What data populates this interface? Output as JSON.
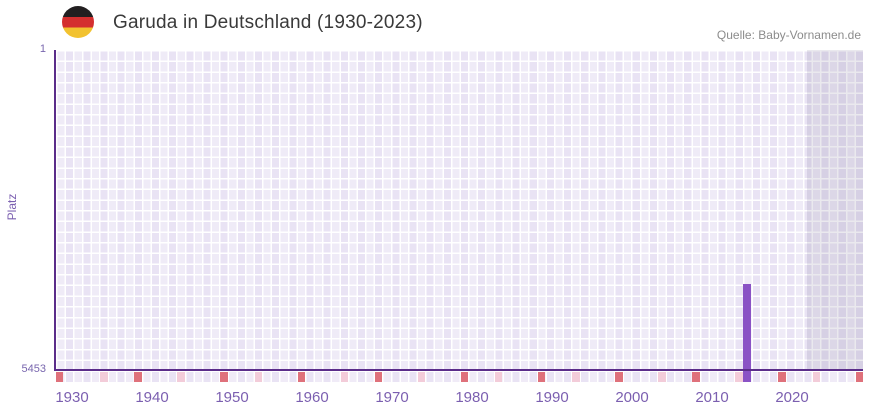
{
  "header": {
    "title": "Garuda in Deutschland (1930-2023)",
    "source": "Quelle: Baby-Vornamen.de"
  },
  "flag": {
    "name": "germany-flag-roundel",
    "colors": {
      "black": "#221f20",
      "red": "#d42f2f",
      "gold": "#f2c230"
    }
  },
  "chart_data": {
    "type": "bar",
    "title": "Garuda in Deutschland (1930-2023)",
    "xlabel": "",
    "ylabel": "Platz",
    "x_range": [
      1930,
      2023
    ],
    "x_ticks": [
      "1930",
      "1940",
      "1950",
      "1960",
      "1970",
      "1980",
      "1990",
      "2000",
      "2010",
      "2020"
    ],
    "y_axis_inverted": true,
    "y_range": [
      1,
      5453
    ],
    "y_tick_top": "1",
    "y_tick_bottom": "5453",
    "legend": "none",
    "grid": "checkerboard",
    "series": [
      {
        "name": "Platz",
        "points": [
          {
            "year": 2014,
            "rank": 3990
          }
        ]
      }
    ],
    "layout_hints": {
      "recent_overlay_start_fraction": 0.93,
      "strip_divisions": 10
    }
  },
  "colors": {
    "bar": "#8a52c5",
    "axis_line": "#5b2d8a",
    "tick_text": "#7b5fb0",
    "y_tick_text": "#7866ae",
    "grid_cell": "#e9e3f4",
    "recent_overlay": "rgba(96,88,122,0.13)",
    "strip_major_mark": "#df717b",
    "strip_minor_mark": "#f3ccd9",
    "title_text": "#3a3a3a",
    "source_text": "#8c8c8c"
  }
}
